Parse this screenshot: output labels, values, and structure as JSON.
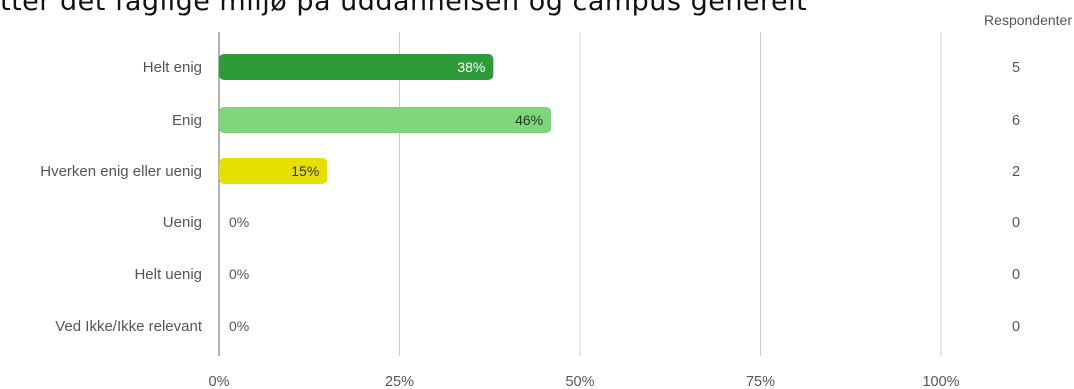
{
  "chart_data": {
    "type": "bar",
    "orientation": "horizontal",
    "title": "tter det faglige miljø på uddannelsen og campus generelt",
    "categories": [
      "Helt enig",
      "Enig",
      "Hverken enig eller uenig",
      "Uenig",
      "Helt uenig",
      "Ved Ikke/Ikke relevant"
    ],
    "values": [
      38,
      46,
      15,
      0,
      0,
      0
    ],
    "value_labels": [
      "38%",
      "46%",
      "15%",
      "0%",
      "0%",
      "0%"
    ],
    "respondents_header": "Respondenter",
    "respondents": [
      "5",
      "6",
      "2",
      "0",
      "0",
      "0"
    ],
    "xlim": [
      0,
      100
    ],
    "xticks": [
      "0%",
      "25%",
      "50%",
      "75%",
      "100%"
    ],
    "grid": true,
    "colors": [
      "#2e9b3a",
      "#7fd67a",
      "#e6e000",
      "#ffffff",
      "#ffffff",
      "#ffffff"
    ],
    "label_colors": [
      "#ffffff",
      "#1d3a1d",
      "#333333",
      "#555555",
      "#555555",
      "#555555"
    ]
  }
}
